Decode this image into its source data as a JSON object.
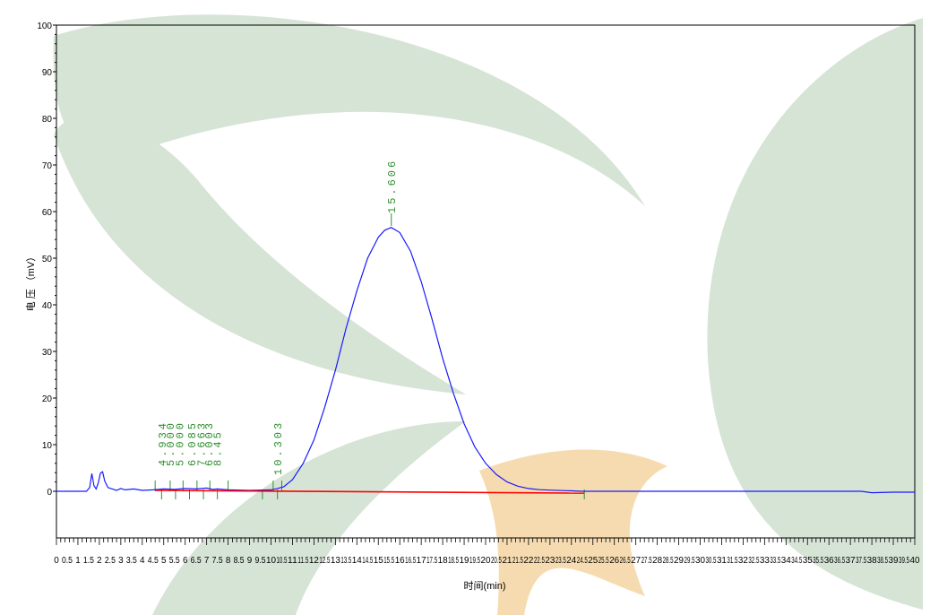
{
  "chart_data": {
    "type": "line",
    "xlabel": "时间(min)",
    "ylabel": "电 压 （mV）",
    "xlim": [
      0,
      40
    ],
    "ylim": [
      -10,
      100
    ],
    "x_tick_step": 0.5,
    "x_tick_labels": [
      "0",
      "0.5",
      "1",
      "1.5",
      "2",
      "2.5",
      "3",
      "3.5",
      "4",
      "4.5",
      "5",
      "5.5",
      "6",
      "6.5",
      "7",
      "7.5",
      "8",
      "8.5",
      "9",
      "9.5",
      "10",
      "10.5",
      "11",
      "11.5",
      "12",
      "12.5",
      "13",
      "13.5",
      "14",
      "14.5",
      "15",
      "15.5",
      "16",
      "16.5",
      "17",
      "17.5",
      "18",
      "18.5",
      "19",
      "19.5",
      "20",
      "20.5",
      "21",
      "21.5",
      "22",
      "22.5",
      "23",
      "23.5",
      "24",
      "24.5",
      "25",
      "25.5",
      "26",
      "26.5",
      "27",
      "27.5",
      "28",
      "28.5",
      "29",
      "29.5",
      "30",
      "30.5",
      "31",
      "31.5",
      "32",
      "32.5",
      "33",
      "33.5",
      "34",
      "34.5",
      "35",
      "35.5",
      "36",
      "36.5",
      "37",
      "37.5",
      "38",
      "38.5",
      "39",
      "39.5",
      "40"
    ],
    "y_ticks": [
      0,
      10,
      20,
      30,
      40,
      50,
      60,
      70,
      80,
      90,
      100
    ],
    "series": [
      {
        "color": "#1a1aff",
        "points": [
          [
            0,
            0
          ],
          [
            1.4,
            0
          ],
          [
            1.55,
            0.8
          ],
          [
            1.65,
            3.8
          ],
          [
            1.75,
            1.2
          ],
          [
            1.85,
            0.5
          ],
          [
            1.95,
            1.8
          ],
          [
            2.05,
            3.9
          ],
          [
            2.15,
            4.2
          ],
          [
            2.25,
            2.2
          ],
          [
            2.4,
            0.8
          ],
          [
            2.6,
            0.5
          ],
          [
            2.8,
            0.2
          ],
          [
            3.0,
            0.6
          ],
          [
            3.2,
            0.3
          ],
          [
            3.6,
            0.5
          ],
          [
            4.0,
            0.2
          ],
          [
            4.5,
            0.3
          ],
          [
            5.0,
            0.5
          ],
          [
            5.5,
            0.4
          ],
          [
            6.0,
            0.6
          ],
          [
            6.5,
            0.5
          ],
          [
            7.0,
            0.7
          ],
          [
            7.3,
            0.4
          ],
          [
            7.5,
            0.5
          ],
          [
            8.0,
            0.3
          ],
          [
            9.0,
            0.2
          ],
          [
            10.0,
            0.3
          ],
          [
            10.3,
            0.6
          ],
          [
            10.6,
            1.0
          ],
          [
            11.0,
            2.5
          ],
          [
            11.5,
            6
          ],
          [
            12,
            11
          ],
          [
            12.5,
            18
          ],
          [
            13,
            26
          ],
          [
            13.5,
            35
          ],
          [
            14,
            43
          ],
          [
            14.5,
            50
          ],
          [
            15,
            54.5
          ],
          [
            15.3,
            56
          ],
          [
            15.6,
            56.6
          ],
          [
            16,
            55.5
          ],
          [
            16.5,
            51.5
          ],
          [
            17,
            45
          ],
          [
            17.5,
            37
          ],
          [
            18,
            28.5
          ],
          [
            18.5,
            21
          ],
          [
            19,
            14.5
          ],
          [
            19.5,
            9.5
          ],
          [
            20,
            6
          ],
          [
            20.5,
            3.6
          ],
          [
            21,
            2
          ],
          [
            21.5,
            1.1
          ],
          [
            22,
            0.6
          ],
          [
            22.5,
            0.35
          ],
          [
            23,
            0.25
          ],
          [
            24,
            0.1
          ],
          [
            24.5,
            0
          ],
          [
            30,
            0
          ],
          [
            37.5,
            0
          ],
          [
            38,
            -0.3
          ],
          [
            39,
            -0.2
          ],
          [
            40,
            -0.2
          ]
        ]
      },
      {
        "color": "#ff0000",
        "points": [
          [
            4.6,
            0.2
          ],
          [
            24.6,
            -0.4
          ]
        ]
      }
    ],
    "peaks": [
      {
        "label": "15.606",
        "rt": 15.606
      },
      {
        "label": "10.303",
        "rt": 10.303
      },
      {
        "label": "4.934",
        "rt": 4.934
      },
      {
        "label": "5.000",
        "rt": 5.3
      },
      {
        "label": "5.000",
        "rt": 5.75
      },
      {
        "label": "6.085",
        "rt": 6.3
      },
      {
        "label": "7.663",
        "rt": 6.75
      },
      {
        "label": "6.003",
        "rt": 7.1
      },
      {
        "label": "8.45",
        "rt": 7.5
      }
    ],
    "baseline_markers": [
      4.6,
      4.9,
      5.3,
      5.55,
      5.9,
      6.2,
      6.55,
      6.85,
      7.15,
      7.5,
      8.0,
      9.6,
      10.1,
      10.3,
      10.5,
      24.6
    ],
    "grid": false
  }
}
